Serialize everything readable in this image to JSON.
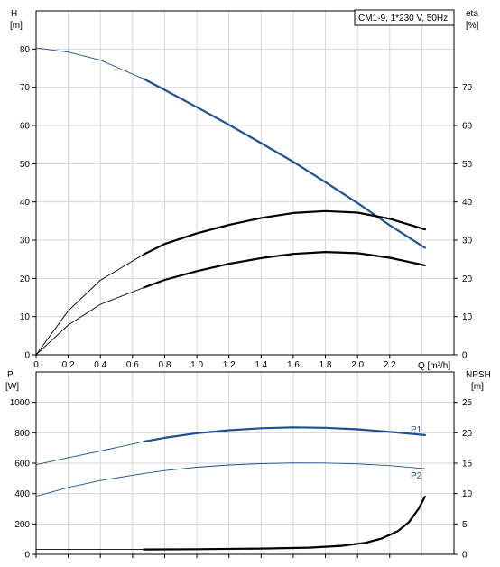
{
  "chart_data": [
    {
      "type": "line",
      "title": "CM1-9, 1*230 V, 50Hz",
      "xlabel": "Q [m³/h]",
      "xlim": [
        0,
        2.6
      ],
      "x_ticks": [
        "0",
        "0.2",
        "0.4",
        "0.6",
        "0.8",
        "1.0",
        "1.2",
        "1.4",
        "1.6",
        "1.8",
        "2.0",
        "2.2"
      ],
      "x_tick_values": [
        0,
        0.2,
        0.4,
        0.6,
        0.8,
        1.0,
        1.2,
        1.4,
        1.6,
        1.8,
        2.0,
        2.2
      ],
      "y_left": {
        "label_top": "H",
        "label_unit": "[m]",
        "lim": [
          0,
          90
        ],
        "ticks": [
          "0",
          "10",
          "20",
          "30",
          "40",
          "50",
          "60",
          "70",
          "80"
        ],
        "tick_values": [
          0,
          10,
          20,
          30,
          40,
          50,
          60,
          70,
          80
        ]
      },
      "y_right": {
        "label_top": "eta",
        "label_unit": "[%]",
        "lim": [
          0,
          90
        ],
        "ticks": [
          "0",
          "10",
          "20",
          "30",
          "40",
          "50",
          "60",
          "70"
        ],
        "tick_values": [
          0,
          10,
          20,
          30,
          40,
          50,
          60,
          70
        ]
      },
      "grid": true,
      "series": [
        {
          "key": "head",
          "color": "#1f4f8f",
          "axis": "left",
          "bold_from": 0.67,
          "x": [
            0,
            0.2,
            0.4,
            0.67,
            0.8,
            1.0,
            1.2,
            1.4,
            1.6,
            1.8,
            2.0,
            2.2,
            2.42
          ],
          "y": [
            80.3,
            79.2,
            77.1,
            72.2,
            69.3,
            64.8,
            60.2,
            55.4,
            50.5,
            45.2,
            39.7,
            33.9,
            28.0
          ]
        },
        {
          "key": "eta_total",
          "color": "#000000",
          "axis": "right",
          "bold_from": 0.67,
          "x": [
            0,
            0.2,
            0.4,
            0.67,
            0.8,
            1.0,
            1.2,
            1.4,
            1.6,
            1.8,
            2.0,
            2.2,
            2.42
          ],
          "y": [
            0,
            11.5,
            19.5,
            26.3,
            29.0,
            31.8,
            34.0,
            35.8,
            37.1,
            37.6,
            37.2,
            35.6,
            32.8
          ]
        },
        {
          "key": "eta_pump",
          "color": "#000000",
          "axis": "right",
          "bold_from": 0.67,
          "x": [
            0,
            0.2,
            0.4,
            0.67,
            0.8,
            1.0,
            1.2,
            1.4,
            1.6,
            1.8,
            2.0,
            2.2,
            2.42
          ],
          "y": [
            0,
            7.8,
            13.2,
            17.6,
            19.6,
            21.9,
            23.8,
            25.3,
            26.4,
            26.9,
            26.6,
            25.4,
            23.4
          ]
        }
      ]
    },
    {
      "type": "line",
      "title": "",
      "xlim": [
        0,
        2.6
      ],
      "y_left": {
        "label_top": "P",
        "label_unit": "[W]",
        "lim": [
          0,
          1200
        ],
        "ticks": [
          "0",
          "200",
          "400",
          "600",
          "800",
          "1000"
        ],
        "tick_values": [
          0,
          200,
          400,
          600,
          800,
          1000
        ]
      },
      "y_right": {
        "label_top": "NPSH",
        "label_unit": "[m]",
        "lim": [
          0,
          30
        ],
        "ticks": [
          "0",
          "5",
          "10",
          "15",
          "20",
          "25"
        ],
        "tick_values": [
          0,
          5,
          10,
          15,
          20,
          25
        ]
      },
      "grid": true,
      "series": [
        {
          "name": "P1",
          "key": "p1",
          "color": "#1f4f8f",
          "axis": "left",
          "bold_from": 0.67,
          "x": [
            0,
            0.2,
            0.4,
            0.67,
            0.8,
            1.0,
            1.2,
            1.4,
            1.6,
            1.8,
            2.0,
            2.2,
            2.42
          ],
          "y": [
            590,
            636,
            680,
            742,
            767,
            797,
            817,
            830,
            836,
            833,
            823,
            806,
            785
          ]
        },
        {
          "name": "P2",
          "key": "p2",
          "color": "#1f4f8f",
          "axis": "left",
          "bold_from": 99,
          "x": [
            0,
            0.2,
            0.4,
            0.67,
            0.8,
            1.0,
            1.2,
            1.4,
            1.6,
            1.8,
            2.0,
            2.2,
            2.42
          ],
          "y": [
            382,
            440,
            486,
            532,
            551,
            573,
            588,
            597,
            602,
            601,
            595,
            584,
            564
          ]
        },
        {
          "key": "npsh_ref",
          "color": "#000000",
          "axis": "right",
          "bold_from": 99,
          "x": [
            0,
            0.67
          ],
          "y": [
            0.8,
            0.8
          ]
        },
        {
          "key": "npsh",
          "color": "#000000",
          "axis": "right",
          "bold_from": 0.67,
          "x": [
            0.67,
            1.0,
            1.4,
            1.7,
            1.9,
            2.05,
            2.15,
            2.25,
            2.32,
            2.38,
            2.42
          ],
          "y": [
            0.8,
            0.85,
            0.95,
            1.1,
            1.4,
            1.9,
            2.6,
            3.8,
            5.3,
            7.5,
            9.5
          ]
        }
      ]
    }
  ]
}
